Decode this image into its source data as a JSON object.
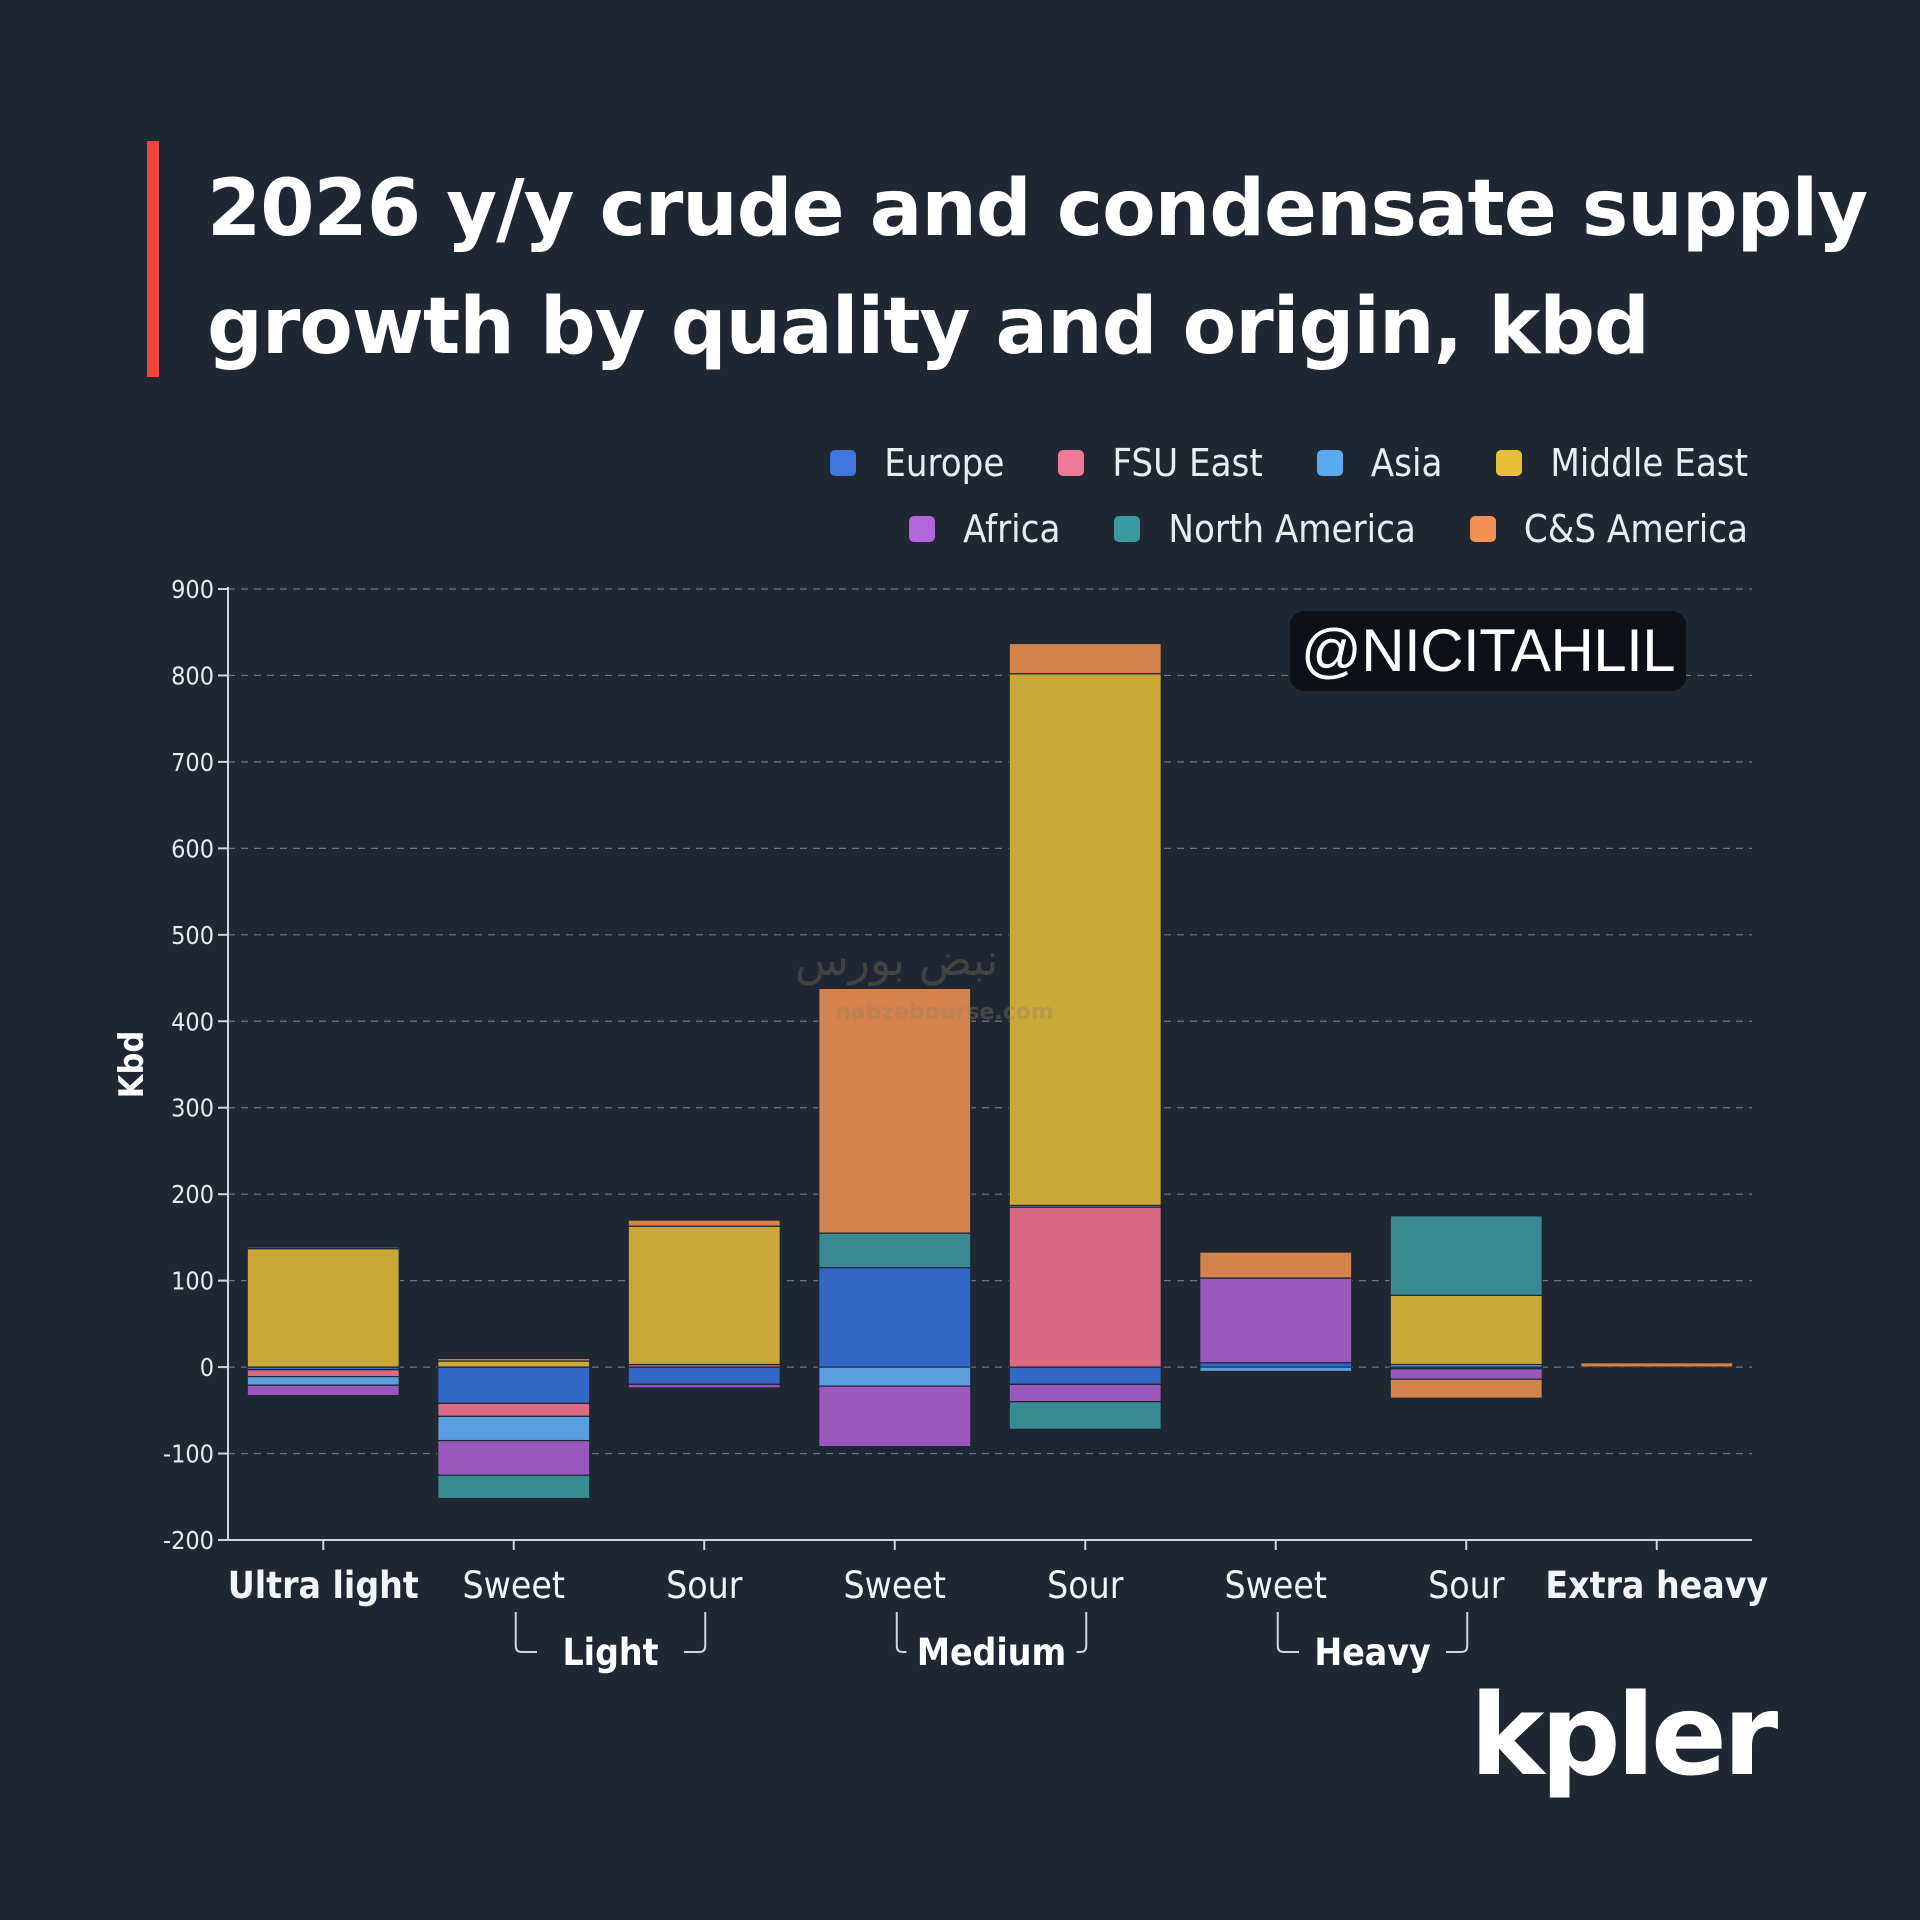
{
  "header": {
    "title_line1": "2026 y/y crude and condensate supply",
    "title_line2": "growth by quality and origin, kbd",
    "accent_color": "#e8473c"
  },
  "legend": {
    "row1": [
      {
        "name": "Europe",
        "color": "#3d77e0"
      },
      {
        "name": "FSU East",
        "color": "#f07a95"
      },
      {
        "name": "Asia",
        "color": "#5aaaf0"
      },
      {
        "name": "Middle East",
        "color": "#e8bf3a"
      }
    ],
    "row2": [
      {
        "name": "Africa",
        "color": "#b366d9"
      },
      {
        "name": "North America",
        "color": "#3a9aa0"
      },
      {
        "name": "C&S America",
        "color": "#f39055"
      }
    ]
  },
  "watermark_tag": "@NICITAHLIL",
  "watermark_site": "nabzebourse.com",
  "watermark_arabic": "نبض بورس",
  "logo_text": "kpler",
  "chart_data": {
    "type": "bar",
    "stacked": true,
    "title": "2026 y/y crude and condensate supply growth by quality and origin, kbd",
    "ylabel": "Kbd",
    "xlabel": "",
    "ylim": [
      -200,
      900
    ],
    "yticks": [
      -200,
      -100,
      0,
      100,
      200,
      300,
      400,
      500,
      600,
      700,
      800,
      900
    ],
    "grid": true,
    "legend_position": "top-right",
    "categories": [
      "Ultra light",
      "Sweet",
      "Sour",
      "Sweet",
      "Sour",
      "Sweet",
      "Sour",
      "Extra heavy"
    ],
    "category_bold": [
      true,
      false,
      false,
      false,
      false,
      false,
      false,
      true
    ],
    "groups": [
      {
        "label": "Light",
        "from": 1,
        "to": 2
      },
      {
        "label": "Medium",
        "from": 3,
        "to": 4
      },
      {
        "label": "Heavy",
        "from": 5,
        "to": 6
      }
    ],
    "series": [
      {
        "name": "Europe",
        "color": "#3468c6",
        "values": [
          -3,
          -42,
          -20,
          115,
          -20,
          5,
          -2,
          0
        ]
      },
      {
        "name": "FSU East",
        "color": "#d86a84",
        "values": [
          -8,
          -15,
          3,
          0,
          185,
          0,
          0,
          0
        ]
      },
      {
        "name": "Asia",
        "color": "#5a9ee0",
        "values": [
          -10,
          -28,
          0,
          -22,
          2,
          -5,
          3,
          0
        ]
      },
      {
        "name": "Middle East",
        "color": "#c9a838",
        "values": [
          137,
          7,
          160,
          0,
          615,
          0,
          80,
          0
        ]
      },
      {
        "name": "Africa",
        "color": "#9a58bd",
        "values": [
          -12,
          -40,
          -4,
          -70,
          -20,
          98,
          -12,
          0
        ]
      },
      {
        "name": "North America",
        "color": "#378a90",
        "values": [
          2,
          -27,
          0,
          40,
          -32,
          0,
          92,
          0
        ]
      },
      {
        "name": "C&S America",
        "color": "#d5834c",
        "values": [
          0,
          3,
          7,
          283,
          35,
          30,
          -22,
          5
        ]
      }
    ]
  }
}
